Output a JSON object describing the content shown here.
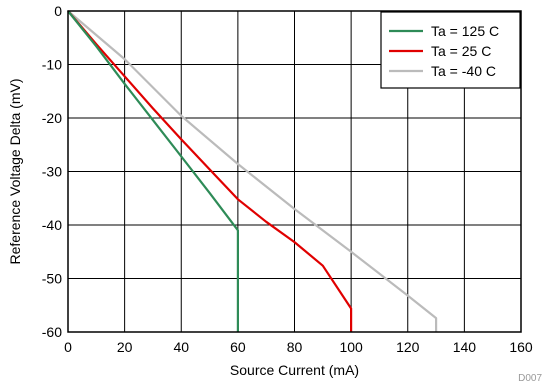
{
  "chart_data": {
    "type": "line",
    "xlabel": "Source Current (mA)",
    "ylabel": "Reference Voltage Delta (mV)",
    "xlim": [
      0,
      160
    ],
    "ylim": [
      -60,
      0
    ],
    "xticks": [
      0,
      20,
      40,
      60,
      80,
      100,
      120,
      140,
      160
    ],
    "yticks": [
      0,
      -10,
      -20,
      -30,
      -40,
      -50,
      -60
    ],
    "grid": true,
    "legend_position": "top-right",
    "series": [
      {
        "name": "Ta = 125 C",
        "color": "#2e8b57",
        "points": [
          [
            0,
            0
          ],
          [
            10,
            -6.6
          ],
          [
            20,
            -13.6
          ],
          [
            30,
            -20.4
          ],
          [
            40,
            -27.2
          ],
          [
            50,
            -34
          ],
          [
            60,
            -41
          ],
          [
            60,
            -60
          ]
        ]
      },
      {
        "name": "Ta = 25 C",
        "color": "#e00000",
        "points": [
          [
            0,
            0
          ],
          [
            10,
            -6.2
          ],
          [
            20,
            -12.2
          ],
          [
            30,
            -18.2
          ],
          [
            40,
            -24
          ],
          [
            50,
            -29.6
          ],
          [
            60,
            -35.2
          ],
          [
            70,
            -39.4
          ],
          [
            80,
            -43.2
          ],
          [
            90,
            -47.6
          ],
          [
            100,
            -55.6
          ],
          [
            100,
            -60
          ]
        ]
      },
      {
        "name": "Ta = -40 C",
        "color": "#bbbbbb",
        "points": [
          [
            0,
            0
          ],
          [
            20,
            -9
          ],
          [
            40,
            -19.6
          ],
          [
            60,
            -28.6
          ],
          [
            80,
            -37
          ],
          [
            100,
            -45
          ],
          [
            120,
            -53.2
          ],
          [
            130,
            -57.4
          ],
          [
            130,
            -60
          ]
        ]
      }
    ],
    "corner_code": "D007"
  }
}
